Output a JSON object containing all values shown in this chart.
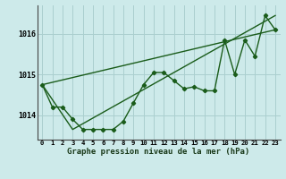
{
  "title": "Graphe pression niveau de la mer (hPa)",
  "background_color": "#cdeaea",
  "grid_color": "#aacfcf",
  "line_color": "#1a5c1a",
  "xlim": [
    -0.5,
    23.5
  ],
  "ylim": [
    1013.4,
    1016.7
  ],
  "yticks": [
    1014,
    1015,
    1016
  ],
  "xtick_labels": [
    "0",
    "1",
    "2",
    "3",
    "4",
    "5",
    "6",
    "7",
    "8",
    "9",
    "10",
    "11",
    "12",
    "13",
    "14",
    "15",
    "16",
    "17",
    "18",
    "19",
    "20",
    "21",
    "22",
    "23"
  ],
  "series1": [
    1014.75,
    1014.2,
    1014.2,
    1013.9,
    1013.65,
    1013.65,
    1013.65,
    1013.65,
    1013.85,
    1014.3,
    1014.75,
    1015.05,
    1015.05,
    1014.85,
    1014.65,
    1014.7,
    1014.6,
    1014.6,
    1015.85,
    1015.0,
    1015.85,
    1015.45,
    1016.45,
    1016.1
  ],
  "trend1_x": [
    0,
    23
  ],
  "trend1_y": [
    1014.75,
    1016.1
  ],
  "trend2_x": [
    0,
    3,
    23
  ],
  "trend2_y": [
    1014.75,
    1013.65,
    1016.45
  ]
}
